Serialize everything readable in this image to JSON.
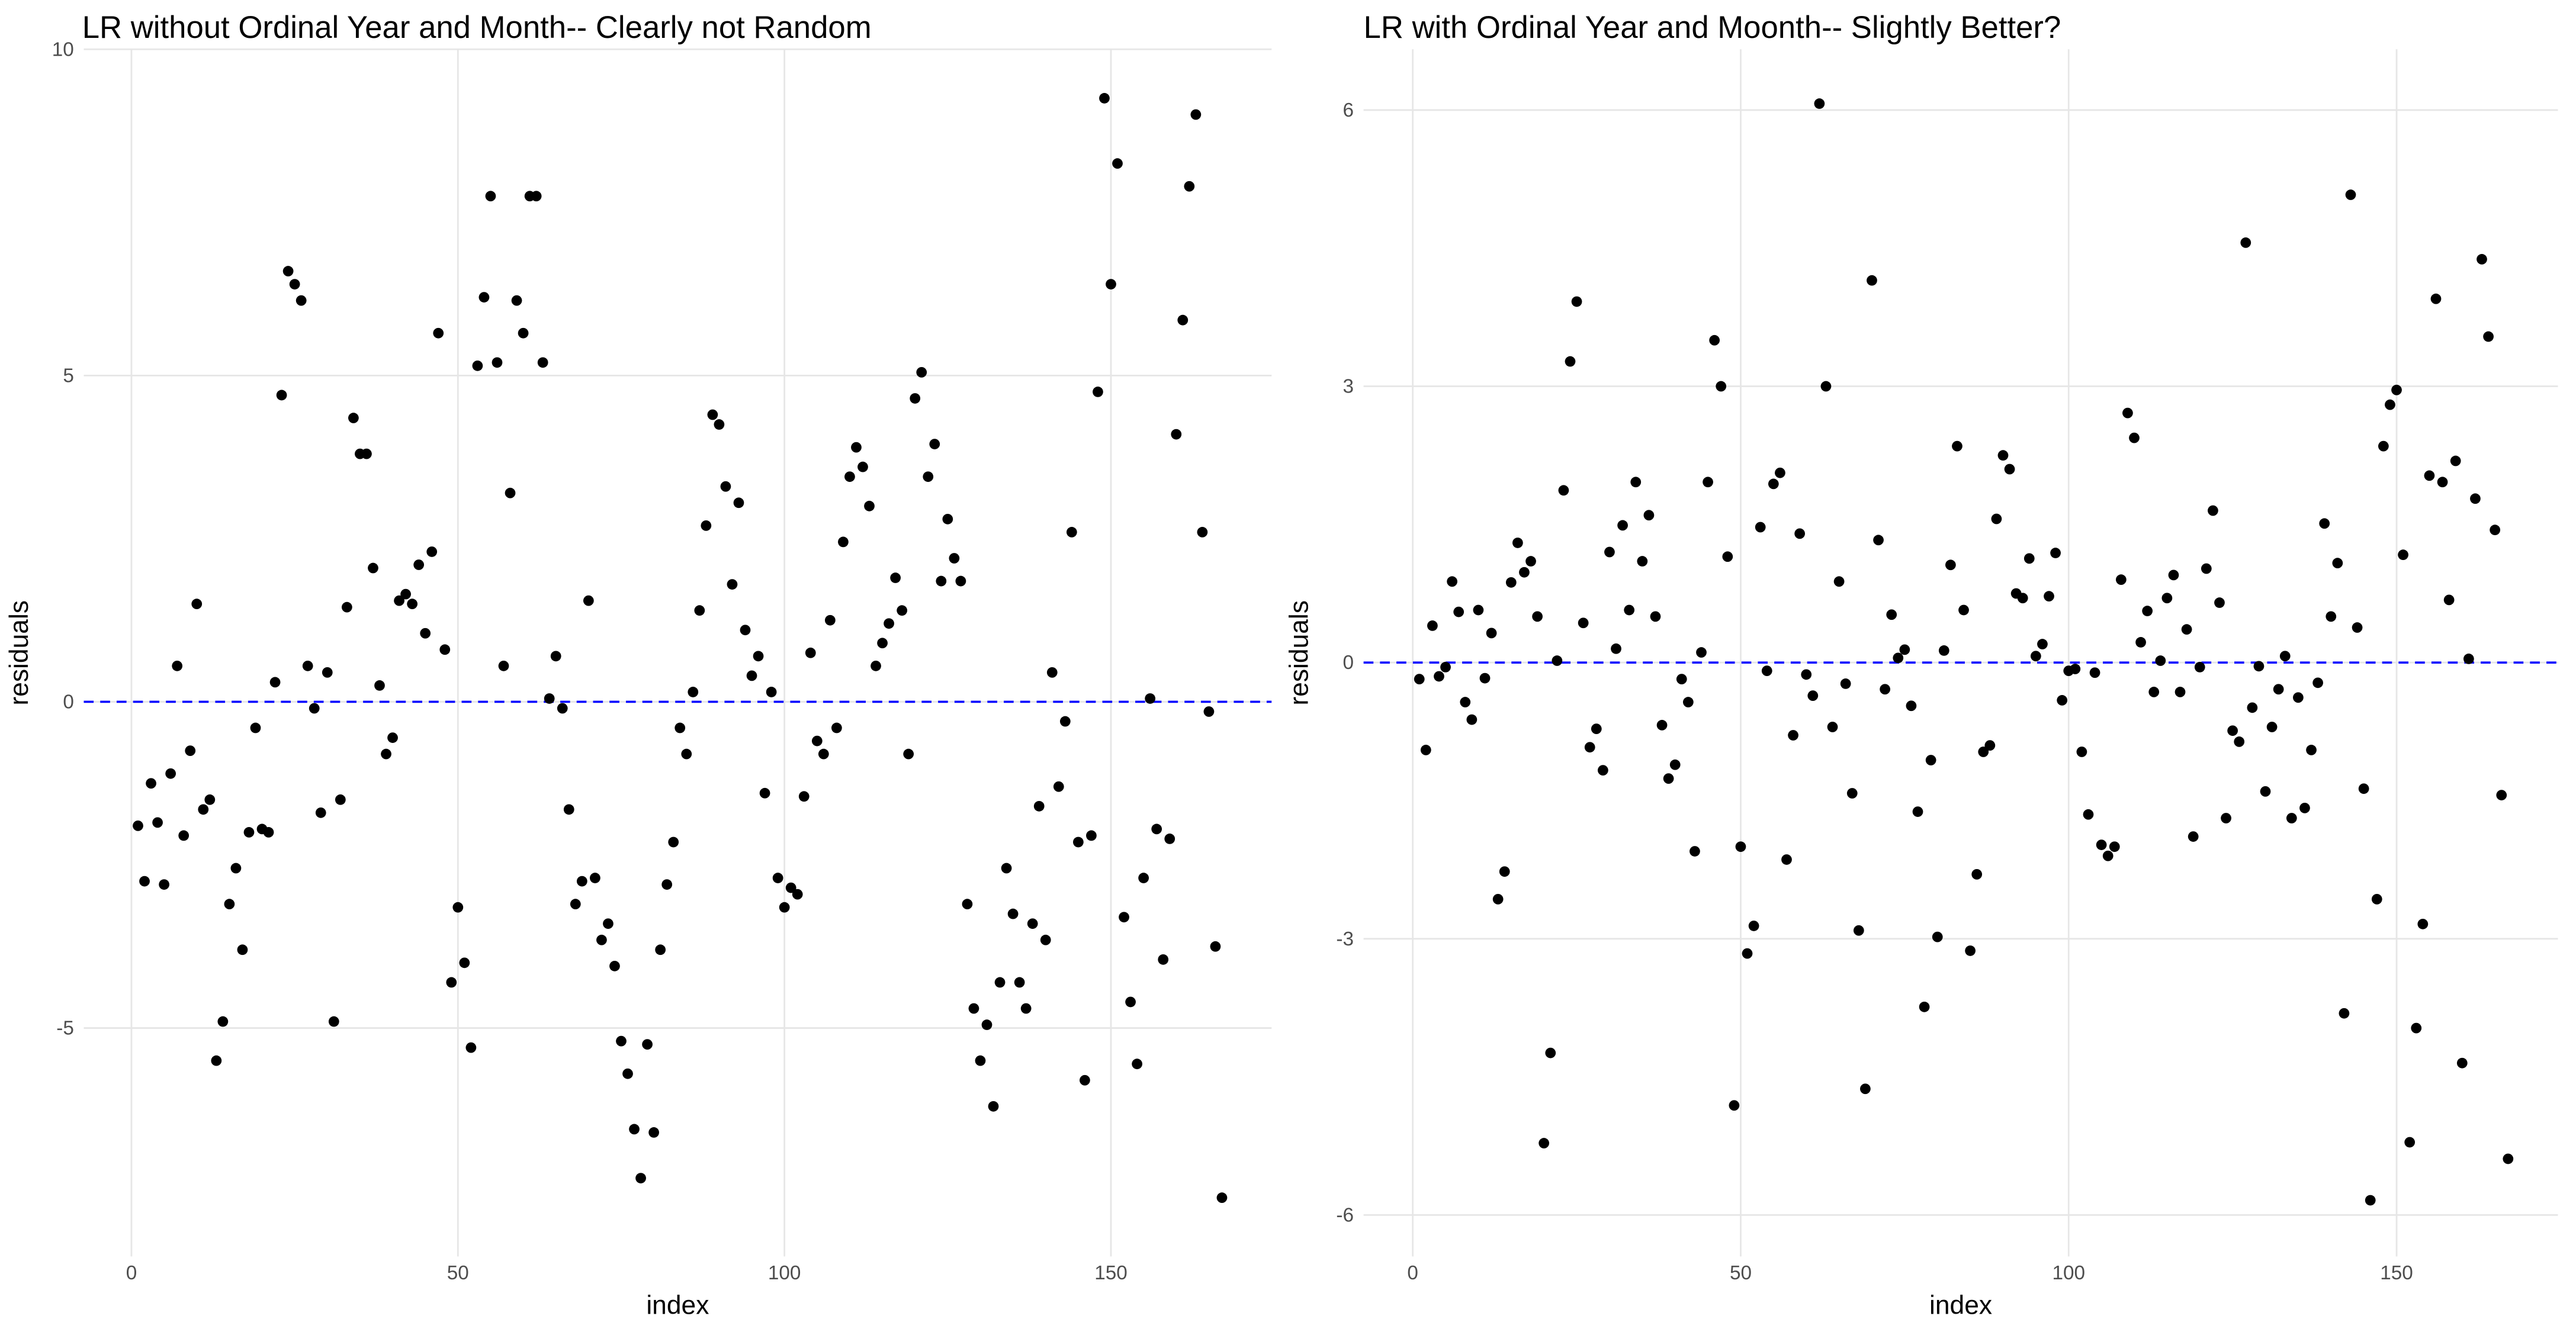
{
  "chart_data": [
    {
      "type": "scatter",
      "title": "LR without Ordinal Year and Month-- Clearly not Random",
      "x_label": "index",
      "y_label": "residuals",
      "color": "#000000",
      "x": [
        1,
        2,
        3,
        4,
        5,
        6,
        7,
        8,
        9,
        10,
        11,
        12,
        13,
        14,
        15,
        16,
        17,
        18,
        19,
        20,
        21,
        22,
        23,
        24,
        25,
        26,
        27,
        28,
        29,
        30,
        31,
        32,
        33,
        34,
        35,
        36,
        37,
        38,
        39,
        40,
        41,
        42,
        43,
        44,
        45,
        46,
        47,
        48,
        49,
        50,
        51,
        52,
        53,
        54,
        55,
        56,
        57,
        58,
        59,
        60,
        61,
        62,
        63,
        64,
        65,
        66,
        67,
        68,
        69,
        70,
        71,
        72,
        73,
        74,
        75,
        76,
        77,
        78,
        79,
        80,
        81,
        82,
        83,
        84,
        85,
        86,
        87,
        88,
        89,
        90,
        91,
        92,
        93,
        94,
        95,
        96,
        97,
        98,
        99,
        100,
        101,
        102,
        103,
        104,
        105,
        106,
        107,
        108,
        109,
        110,
        111,
        112,
        113,
        114,
        115,
        116,
        117,
        118,
        119,
        120,
        121,
        122,
        123,
        124,
        125,
        126,
        127,
        128,
        129,
        130,
        131,
        132,
        133,
        134,
        135,
        136,
        137,
        138,
        139,
        140,
        141,
        142,
        143,
        144,
        145,
        146,
        147,
        148,
        149,
        150,
        151,
        152,
        153,
        154,
        155,
        156,
        157,
        158,
        159,
        160,
        161,
        162,
        163,
        164,
        165,
        166,
        167
      ],
      "values": [
        -1.9,
        -2.75,
        -1.25,
        -1.85,
        -2.8,
        -1.1,
        0.55,
        -2.05,
        -0.75,
        1.5,
        -1.65,
        -1.5,
        -5.5,
        -4.9,
        -3.1,
        -2.55,
        -3.8,
        -2.0,
        -0.4,
        -1.95,
        -2.0,
        0.3,
        4.7,
        6.6,
        6.4,
        6.15,
        0.55,
        -0.1,
        -1.7,
        0.45,
        -4.9,
        -1.5,
        1.45,
        4.35,
        3.8,
        3.8,
        2.05,
        0.25,
        -0.8,
        -0.55,
        1.55,
        1.65,
        1.5,
        2.1,
        1.05,
        2.3,
        5.65,
        0.8,
        -4.3,
        -3.15,
        -4.0,
        -5.3,
        5.15,
        6.2,
        7.75,
        5.2,
        0.55,
        3.2,
        6.15,
        5.65,
        7.75,
        7.75,
        5.2,
        0.05,
        0.7,
        -0.1,
        -1.65,
        -3.1,
        -2.75,
        1.55,
        -2.7,
        -3.65,
        -3.4,
        -4.05,
        -5.2,
        -5.7,
        -6.55,
        -7.3,
        -5.25,
        -6.6,
        -3.8,
        -2.8,
        -2.15,
        -0.4,
        -0.8,
        0.15,
        1.4,
        2.7,
        4.4,
        4.25,
        3.3,
        1.8,
        3.05,
        1.1,
        0.4,
        0.7,
        -1.4,
        0.15,
        -2.7,
        -3.15,
        -2.85,
        -2.95,
        -1.45,
        0.75,
        -0.6,
        -0.8,
        1.25,
        -0.4,
        2.45,
        3.45,
        3.9,
        3.6,
        3.0,
        0.55,
        0.9,
        1.2,
        1.9,
        1.4,
        -0.8,
        4.65,
        5.05,
        3.45,
        3.95,
        1.85,
        2.8,
        2.2,
        1.85,
        -3.1,
        -4.7,
        -5.5,
        -4.95,
        -6.2,
        -4.3,
        -2.55,
        -3.25,
        -4.3,
        -4.7,
        -3.4,
        -1.6,
        -3.65,
        0.45,
        -1.3,
        -0.3,
        2.6,
        -2.15,
        -5.8,
        -2.05,
        4.75,
        9.25,
        6.4,
        8.25,
        -3.3,
        -4.6,
        -5.55,
        -2.7,
        0.05,
        -1.95,
        -3.95,
        -2.1,
        4.1,
        5.85,
        7.9,
        9.0,
        2.6,
        -0.15,
        -3.75,
        -7.6
      ],
      "xlim": [
        -7.3,
        174.6
      ],
      "ylim": [
        -8.5,
        10
      ],
      "xticks": [
        0,
        50,
        100,
        150
      ],
      "yticks": [
        -5,
        0,
        5,
        10
      ],
      "grid": true,
      "hline": {
        "value": 0,
        "color": "#0000ff"
      }
    },
    {
      "type": "scatter",
      "title": "LR with Ordinal Year and Moonth-- Slightly Better?",
      "x_label": "index",
      "y_label": "residuals",
      "color": "#000000",
      "x": [
        1,
        2,
        3,
        4,
        5,
        6,
        7,
        8,
        9,
        10,
        11,
        12,
        13,
        14,
        15,
        16,
        17,
        18,
        19,
        20,
        21,
        22,
        23,
        24,
        25,
        26,
        27,
        28,
        29,
        30,
        31,
        32,
        33,
        34,
        35,
        36,
        37,
        38,
        39,
        40,
        41,
        42,
        43,
        44,
        45,
        46,
        47,
        48,
        49,
        50,
        51,
        52,
        53,
        54,
        55,
        56,
        57,
        58,
        59,
        60,
        61,
        62,
        63,
        64,
        65,
        66,
        67,
        68,
        69,
        70,
        71,
        72,
        73,
        74,
        75,
        76,
        77,
        78,
        79,
        80,
        81,
        82,
        83,
        84,
        85,
        86,
        87,
        88,
        89,
        90,
        91,
        92,
        93,
        94,
        95,
        96,
        97,
        98,
        99,
        100,
        101,
        102,
        103,
        104,
        105,
        106,
        107,
        108,
        109,
        110,
        111,
        112,
        113,
        114,
        115,
        116,
        117,
        118,
        119,
        120,
        121,
        122,
        123,
        124,
        125,
        126,
        127,
        128,
        129,
        130,
        131,
        132,
        133,
        134,
        135,
        136,
        137,
        138,
        139,
        140,
        141,
        142,
        143,
        144,
        145,
        146,
        147,
        148,
        149,
        150,
        151,
        152,
        153,
        154,
        155,
        156,
        157,
        158,
        159,
        160,
        161,
        162,
        163,
        164,
        165,
        166,
        167
      ],
      "values": [
        -0.18,
        -0.95,
        0.4,
        -0.15,
        -0.05,
        0.88,
        0.55,
        -0.43,
        -0.62,
        0.57,
        -0.17,
        0.32,
        -2.57,
        -2.27,
        0.87,
        1.3,
        0.98,
        1.1,
        0.5,
        -5.22,
        -4.24,
        0.02,
        1.87,
        3.27,
        3.92,
        0.43,
        -0.92,
        -0.72,
        -1.17,
        1.2,
        0.15,
        1.49,
        0.57,
        1.96,
        1.1,
        1.6,
        0.5,
        -0.68,
        -1.26,
        -1.11,
        -0.18,
        -0.43,
        -2.05,
        0.11,
        1.96,
        3.5,
        3.0,
        1.15,
        -4.81,
        -2.0,
        -3.16,
        -2.86,
        1.47,
        -0.09,
        1.94,
        2.06,
        -2.14,
        -0.79,
        1.4,
        -0.13,
        -0.36,
        6.07,
        3.0,
        -0.7,
        0.88,
        -0.23,
        -1.42,
        -2.91,
        -4.63,
        4.15,
        1.33,
        -0.29,
        0.52,
        0.05,
        0.14,
        -0.47,
        -1.62,
        -3.74,
        -1.06,
        -2.98,
        0.13,
        1.06,
        2.35,
        0.57,
        -3.13,
        -2.3,
        -0.97,
        -0.9,
        1.56,
        2.25,
        2.1,
        0.75,
        0.7,
        1.13,
        0.07,
        0.2,
        0.72,
        1.19,
        -0.41,
        -0.09,
        -0.07,
        -0.97,
        -1.65,
        -0.11,
        -1.98,
        -2.1,
        -2.0,
        0.9,
        2.71,
        2.44,
        0.22,
        0.56,
        -0.32,
        0.02,
        0.7,
        0.95,
        -0.32,
        0.36,
        -1.89,
        -0.05,
        1.02,
        1.65,
        0.65,
        -1.69,
        -0.74,
        -0.86,
        4.56,
        -0.49,
        -0.04,
        -1.4,
        -0.7,
        -0.29,
        0.07,
        -1.69,
        -0.38,
        -1.58,
        -0.95,
        -0.22,
        1.51,
        0.5,
        1.08,
        -3.81,
        5.08,
        0.38,
        -1.37,
        -5.84,
        -2.57,
        2.35,
        2.8,
        2.96,
        1.17,
        -5.21,
        -3.97,
        -2.84,
        2.03,
        3.95,
        1.96,
        0.68,
        2.19,
        -4.35,
        0.04,
        1.78,
        4.38,
        3.54,
        1.44,
        -1.44,
        -5.39
      ],
      "xlim": [
        -7.5,
        174.6
      ],
      "ylim": [
        -6.45,
        6.66
      ],
      "xticks": [
        0,
        50,
        100,
        150
      ],
      "yticks": [
        -6,
        -3,
        0,
        3,
        6
      ],
      "grid": true,
      "hline": {
        "value": 0,
        "color": "#0000ff"
      }
    }
  ]
}
